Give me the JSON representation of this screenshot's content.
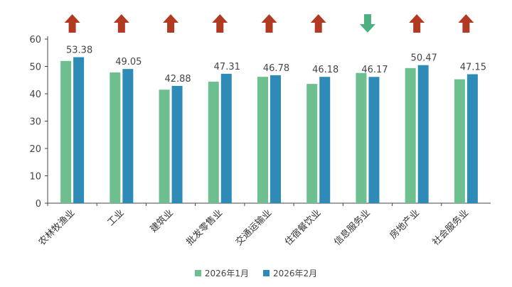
{
  "chart_data": {
    "type": "bar",
    "categories": [
      "农林牧渔业",
      "工业",
      "建筑业",
      "批发零售业",
      "交通运输业",
      "住宿餐饮业",
      "信息服务业",
      "房地产业",
      "社会服务业"
    ],
    "series": [
      {
        "name": "2026年1月",
        "values": [
          52.0,
          47.8,
          41.5,
          44.4,
          46.2,
          43.6,
          47.6,
          49.4,
          45.3
        ]
      },
      {
        "name": "2026年2月",
        "values": [
          53.38,
          49.05,
          42.88,
          47.31,
          46.78,
          46.18,
          46.17,
          50.47,
          47.15
        ]
      }
    ],
    "data_labels": [
      "53.38",
      "49.05",
      "42.88",
      "47.31",
      "46.78",
      "46.18",
      "46.17",
      "50.47",
      "47.15"
    ],
    "trend_arrows": [
      "up",
      "up",
      "up",
      "up",
      "up",
      "up",
      "down",
      "up",
      "up"
    ],
    "ylim": [
      0,
      60
    ],
    "yticks": [
      0,
      10,
      20,
      30,
      40,
      50,
      60
    ],
    "grid": false,
    "legend_position": "bottom",
    "title": "",
    "xlabel": "",
    "ylabel": ""
  },
  "colors": {
    "series1": "#6dbf8f",
    "series2": "#2e8bb8",
    "arrow_up": "#b33a22",
    "arrow_down": "#4cb080",
    "axis": "#444444"
  }
}
